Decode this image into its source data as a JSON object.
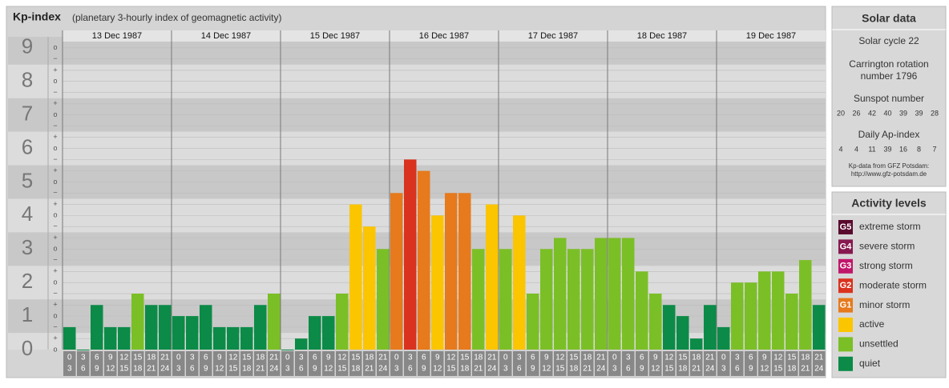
{
  "chart_data": {
    "type": "bar",
    "title": "Kp-index",
    "subtitle": "(planetary 3-hourly index of geomagnetic activity)",
    "ylim": [
      0,
      9.33
    ],
    "yticks": [
      0,
      1,
      2,
      3,
      4,
      5,
      6,
      7,
      8,
      9
    ],
    "minor_ticks": [
      {
        "value": 0,
        "label": "o"
      },
      {
        "value": 0.33,
        "label": "+"
      },
      {
        "value": 0.67,
        "label": "−"
      },
      {
        "value": 1,
        "label": "o"
      },
      {
        "value": 1.33,
        "label": "+"
      },
      {
        "value": 1.67,
        "label": "−"
      },
      {
        "value": 2,
        "label": "o"
      },
      {
        "value": 2.33,
        "label": "+"
      },
      {
        "value": 2.67,
        "label": "−"
      },
      {
        "value": 3,
        "label": "o"
      },
      {
        "value": 3.33,
        "label": "+"
      },
      {
        "value": 3.67,
        "label": "−"
      },
      {
        "value": 4,
        "label": "o"
      },
      {
        "value": 4.33,
        "label": "+"
      },
      {
        "value": 4.67,
        "label": "−"
      },
      {
        "value": 5,
        "label": "o"
      },
      {
        "value": 5.33,
        "label": "+"
      },
      {
        "value": 5.67,
        "label": "−"
      },
      {
        "value": 6,
        "label": "o"
      },
      {
        "value": 6.33,
        "label": "+"
      },
      {
        "value": 6.67,
        "label": "−"
      },
      {
        "value": 7,
        "label": "o"
      },
      {
        "value": 7.33,
        "label": "+"
      },
      {
        "value": 7.67,
        "label": "−"
      },
      {
        "value": 8,
        "label": "o"
      },
      {
        "value": 8.33,
        "label": "+"
      },
      {
        "value": 8.67,
        "label": "−"
      },
      {
        "value": 9,
        "label": "o"
      }
    ],
    "hours": [
      [
        "0",
        "3"
      ],
      [
        "3",
        "6"
      ],
      [
        "6",
        "9"
      ],
      [
        "9",
        "12"
      ],
      [
        "12",
        "15"
      ],
      [
        "15",
        "18"
      ],
      [
        "18",
        "21"
      ],
      [
        "21",
        "24"
      ]
    ],
    "days": [
      {
        "date": "13 Dec 1987",
        "values": [
          0.67,
          0,
          1.33,
          0.67,
          0.67,
          1.67,
          1.33,
          1.33
        ],
        "colors": [
          "#0b8b47",
          "#0b8b47",
          "#0b8b47",
          "#0b8b47",
          "#0b8b47",
          "#7bbf26",
          "#0b8b47",
          "#0b8b47"
        ]
      },
      {
        "date": "14 Dec 1987",
        "values": [
          1,
          1,
          1.33,
          0.67,
          0.67,
          0.67,
          1.33,
          1.67
        ],
        "colors": [
          "#0b8b47",
          "#0b8b47",
          "#0b8b47",
          "#0b8b47",
          "#0b8b47",
          "#0b8b47",
          "#0b8b47",
          "#7bbf26"
        ]
      },
      {
        "date": "15 Dec 1987",
        "values": [
          0,
          0.33,
          1,
          1,
          1.67,
          4.33,
          3.67,
          3
        ],
        "colors": [
          "#0b8b47",
          "#0b8b47",
          "#0b8b47",
          "#0b8b47",
          "#7bbf26",
          "#fbc500",
          "#fbc500",
          "#7bbf26"
        ]
      },
      {
        "date": "16 Dec 1987",
        "values": [
          4.67,
          5.67,
          5.33,
          4,
          4.67,
          4.67,
          3,
          4.33
        ],
        "colors": [
          "#e67a1c",
          "#d9321f",
          "#e67a1c",
          "#fbc500",
          "#e67a1c",
          "#e67a1c",
          "#7bbf26",
          "#fbc500"
        ]
      },
      {
        "date": "17 Dec 1987",
        "values": [
          3,
          4,
          1.67,
          3,
          3.33,
          3,
          3,
          3.33
        ],
        "colors": [
          "#7bbf26",
          "#fbc500",
          "#7bbf26",
          "#7bbf26",
          "#7bbf26",
          "#7bbf26",
          "#7bbf26",
          "#7bbf26"
        ]
      },
      {
        "date": "18 Dec 1987",
        "values": [
          3.33,
          3.33,
          2.33,
          1.67,
          1.33,
          1,
          0.33,
          1.33
        ],
        "colors": [
          "#7bbf26",
          "#7bbf26",
          "#7bbf26",
          "#7bbf26",
          "#0b8b47",
          "#0b8b47",
          "#0b8b47",
          "#0b8b47"
        ]
      },
      {
        "date": "19 Dec 1987",
        "values": [
          0.67,
          2,
          2,
          2.33,
          2.33,
          1.67,
          2.67,
          1.33
        ],
        "colors": [
          "#0b8b47",
          "#7bbf26",
          "#7bbf26",
          "#7bbf26",
          "#7bbf26",
          "#7bbf26",
          "#7bbf26",
          "#0b8b47"
        ]
      }
    ]
  },
  "solar": {
    "title": "Solar data",
    "cycle": "Solar cycle 22",
    "rotation": [
      "Carrington rotation",
      "number 1796"
    ],
    "sunspot_title": "Sunspot number",
    "sunspots": [
      20,
      26,
      42,
      40,
      39,
      39,
      28
    ],
    "ap_title": "Daily Ap-index",
    "ap": [
      4,
      4,
      11,
      39,
      16,
      8,
      7
    ],
    "source": [
      "Kp-data from GFZ Potsdam:",
      "http://www.gfz-potsdam.de"
    ]
  },
  "levels": {
    "title": "Activity levels",
    "items": [
      {
        "badge": "G5",
        "name": "extreme storm",
        "color": "#5a0a2e"
      },
      {
        "badge": "G4",
        "name": "severe storm",
        "color": "#86194f"
      },
      {
        "badge": "G3",
        "name": "strong storm",
        "color": "#c0176b"
      },
      {
        "badge": "G2",
        "name": "moderate storm",
        "color": "#d9321f"
      },
      {
        "badge": "G1",
        "name": "minor storm",
        "color": "#e67a1c"
      },
      {
        "badge": "",
        "name": "active",
        "color": "#fbc500"
      },
      {
        "badge": "",
        "name": "unsettled",
        "color": "#7bbf26"
      },
      {
        "badge": "",
        "name": "quiet",
        "color": "#0b8b47"
      }
    ]
  }
}
